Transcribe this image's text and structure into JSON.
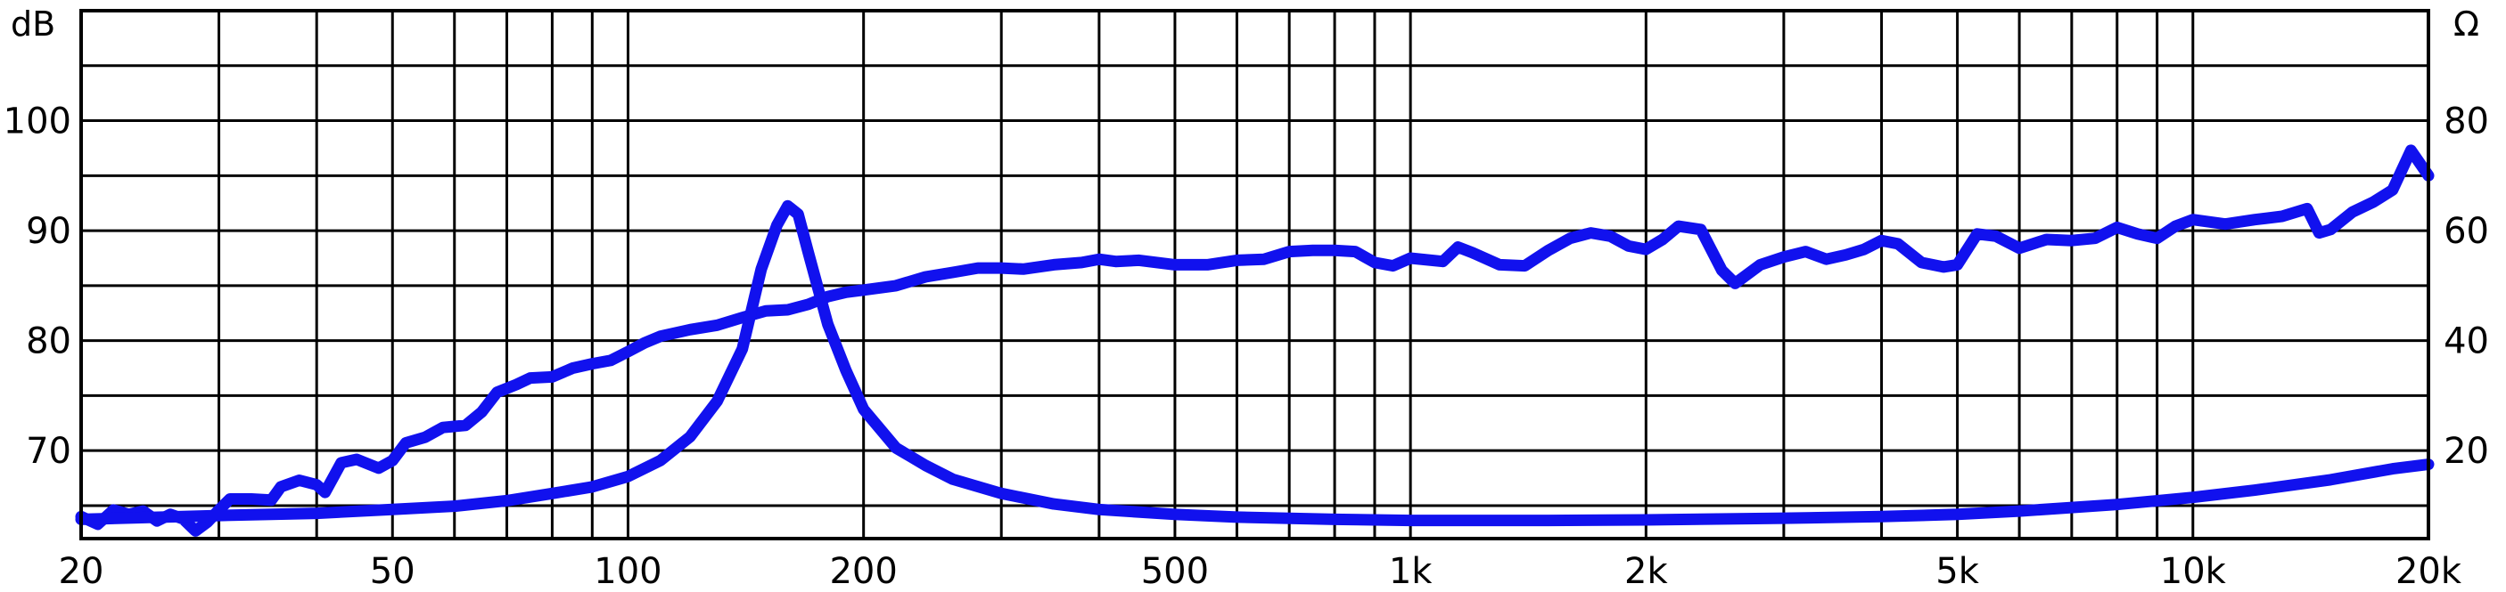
{
  "chart_data": {
    "type": "line",
    "x_scale": "log",
    "xlim": [
      20,
      20000
    ],
    "ylim_left": [
      62,
      110
    ],
    "ylim_right": [
      4,
      100
    ],
    "left_unit": "dB",
    "right_unit": "Ω",
    "grid": true,
    "x_ticks": [
      {
        "value": 20,
        "label": "20"
      },
      {
        "value": 50,
        "label": "50"
      },
      {
        "value": 100,
        "label": "100"
      },
      {
        "value": 200,
        "label": "200"
      },
      {
        "value": 500,
        "label": "500"
      },
      {
        "value": 1000,
        "label": "1k"
      },
      {
        "value": 2000,
        "label": "2k"
      },
      {
        "value": 5000,
        "label": "5k"
      },
      {
        "value": 10000,
        "label": "10k"
      },
      {
        "value": 20000,
        "label": "20k"
      }
    ],
    "y_ticks_left": [
      {
        "value": 70,
        "label": "70"
      },
      {
        "value": 80,
        "label": "80"
      },
      {
        "value": 90,
        "label": "90"
      },
      {
        "value": 100,
        "label": "100"
      }
    ],
    "y_ticks_right": [
      {
        "value": 20,
        "label": "20"
      },
      {
        "value": 40,
        "label": "40"
      },
      {
        "value": 60,
        "label": "60"
      },
      {
        "value": 80,
        "label": "80"
      }
    ],
    "series": [
      {
        "axis": "left",
        "color": "#1111ee",
        "points": [
          [
            20,
            64
          ],
          [
            21,
            63.3
          ],
          [
            22,
            64.6
          ],
          [
            23,
            64.2
          ],
          [
            24,
            64.5
          ],
          [
            25,
            63.6
          ],
          [
            26,
            64.2
          ],
          [
            27,
            63.8
          ],
          [
            28,
            62.7
          ],
          [
            29,
            63.5
          ],
          [
            30,
            64.6
          ],
          [
            31,
            65.6
          ],
          [
            33,
            65.6
          ],
          [
            35,
            65.5
          ],
          [
            36,
            66.7
          ],
          [
            38,
            67.3
          ],
          [
            40,
            66.9
          ],
          [
            41,
            66.2
          ],
          [
            43,
            68.9
          ],
          [
            45,
            69.2
          ],
          [
            48,
            68.4
          ],
          [
            50,
            69.1
          ],
          [
            52,
            70.7
          ],
          [
            55,
            71.2
          ],
          [
            58,
            72.1
          ],
          [
            62,
            72.3
          ],
          [
            65,
            73.5
          ],
          [
            68,
            75.3
          ],
          [
            72,
            76
          ],
          [
            75,
            76.6
          ],
          [
            80,
            76.7
          ],
          [
            85,
            77.5
          ],
          [
            90,
            77.9
          ],
          [
            95,
            78.2
          ],
          [
            100,
            79
          ],
          [
            105,
            79.8
          ],
          [
            110,
            80.4
          ],
          [
            120,
            81
          ],
          [
            130,
            81.4
          ],
          [
            140,
            82.1
          ],
          [
            150,
            82.7
          ],
          [
            160,
            82.8
          ],
          [
            170,
            83.3
          ],
          [
            180,
            84
          ],
          [
            190,
            84.4
          ],
          [
            200,
            84.6
          ],
          [
            220,
            85
          ],
          [
            240,
            85.8
          ],
          [
            260,
            86.2
          ],
          [
            280,
            86.6
          ],
          [
            300,
            86.6
          ],
          [
            320,
            86.5
          ],
          [
            350,
            86.9
          ],
          [
            380,
            87.1
          ],
          [
            400,
            87.4
          ],
          [
            420,
            87.2
          ],
          [
            450,
            87.3
          ],
          [
            500,
            86.9
          ],
          [
            550,
            86.9
          ],
          [
            600,
            87.3
          ],
          [
            650,
            87.4
          ],
          [
            700,
            88.1
          ],
          [
            750,
            88.2
          ],
          [
            800,
            88.2
          ],
          [
            850,
            88.1
          ],
          [
            900,
            87.1
          ],
          [
            950,
            86.8
          ],
          [
            1000,
            87.5
          ],
          [
            1100,
            87.2
          ],
          [
            1150,
            88.5
          ],
          [
            1200,
            88.0
          ],
          [
            1300,
            86.9
          ],
          [
            1400,
            86.8
          ],
          [
            1500,
            88.2
          ],
          [
            1600,
            89.3
          ],
          [
            1700,
            89.8
          ],
          [
            1800,
            89.5
          ],
          [
            1900,
            88.6
          ],
          [
            2000,
            88.3
          ],
          [
            2100,
            89.2
          ],
          [
            2200,
            90.4
          ],
          [
            2350,
            90.1
          ],
          [
            2500,
            86.4
          ],
          [
            2600,
            85.2
          ],
          [
            2800,
            86.9
          ],
          [
            3000,
            87.6
          ],
          [
            3200,
            88.1
          ],
          [
            3400,
            87.4
          ],
          [
            3600,
            87.8
          ],
          [
            3800,
            88.3
          ],
          [
            4000,
            89.1
          ],
          [
            4200,
            88.8
          ],
          [
            4500,
            87.1
          ],
          [
            4800,
            86.7
          ],
          [
            5000,
            86.9
          ],
          [
            5300,
            89.7
          ],
          [
            5600,
            89.5
          ],
          [
            6000,
            88.4
          ],
          [
            6500,
            89.2
          ],
          [
            7000,
            89.1
          ],
          [
            7500,
            89.3
          ],
          [
            8000,
            90.3
          ],
          [
            8500,
            89.7
          ],
          [
            9000,
            89.3
          ],
          [
            9500,
            90.4
          ],
          [
            10000,
            91
          ],
          [
            11000,
            90.6
          ],
          [
            12000,
            91.0
          ],
          [
            13000,
            91.3
          ],
          [
            14000,
            92.0
          ],
          [
            14500,
            89.8
          ],
          [
            15000,
            90.1
          ],
          [
            16000,
            91.7
          ],
          [
            17000,
            92.6
          ],
          [
            18000,
            93.7
          ],
          [
            19000,
            97.3
          ],
          [
            20000,
            95
          ]
        ]
      },
      {
        "axis": "right",
        "color": "#1111ee",
        "points": [
          [
            20,
            7.5
          ],
          [
            30,
            8.2
          ],
          [
            40,
            8.6
          ],
          [
            50,
            9.3
          ],
          [
            60,
            9.9
          ],
          [
            70,
            10.9
          ],
          [
            80,
            12.2
          ],
          [
            90,
            13.4
          ],
          [
            100,
            15.3
          ],
          [
            110,
            18.2
          ],
          [
            120,
            22.5
          ],
          [
            130,
            29
          ],
          [
            140,
            38.5
          ],
          [
            148,
            53
          ],
          [
            155,
            61
          ],
          [
            160,
            64.5
          ],
          [
            165,
            63
          ],
          [
            170,
            56
          ],
          [
            180,
            43
          ],
          [
            190,
            34.5
          ],
          [
            200,
            27.5
          ],
          [
            220,
            20.5
          ],
          [
            240,
            17.3
          ],
          [
            260,
            14.8
          ],
          [
            300,
            12.2
          ],
          [
            350,
            10.3
          ],
          [
            400,
            9.3
          ],
          [
            500,
            8.4
          ],
          [
            600,
            7.9
          ],
          [
            800,
            7.5
          ],
          [
            1000,
            7.3
          ],
          [
            1500,
            7.3
          ],
          [
            2000,
            7.4
          ],
          [
            3000,
            7.7
          ],
          [
            4000,
            8.0
          ],
          [
            5000,
            8.4
          ],
          [
            6000,
            9.0
          ],
          [
            8000,
            10.2
          ],
          [
            10000,
            11.5
          ],
          [
            12000,
            12.8
          ],
          [
            15000,
            14.7
          ],
          [
            18000,
            16.7
          ],
          [
            20000,
            17.5
          ]
        ]
      }
    ]
  }
}
